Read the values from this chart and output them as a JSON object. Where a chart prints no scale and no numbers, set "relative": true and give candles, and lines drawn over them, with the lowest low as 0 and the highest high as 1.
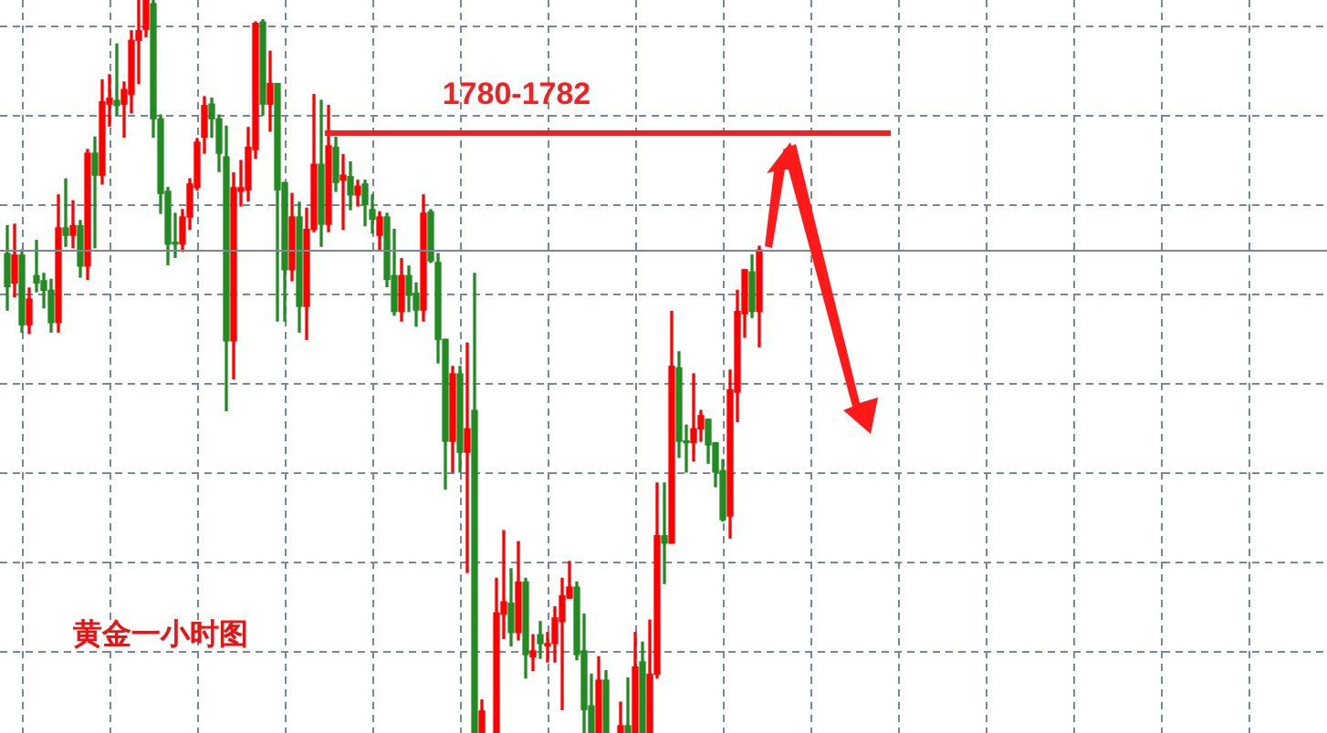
{
  "chart_data": {
    "type": "candlestick",
    "relative": true,
    "grid": true,
    "legend": false,
    "tick_labels": false,
    "categories": [
      null,
      null,
      null,
      null,
      null,
      null,
      null,
      null,
      null,
      null,
      null,
      null,
      null,
      null,
      null,
      null,
      null,
      null,
      null,
      null,
      null,
      null,
      null,
      null,
      null,
      null,
      null,
      null,
      null,
      null,
      null,
      null,
      null,
      null,
      null,
      null,
      null,
      null,
      null,
      null,
      null,
      null,
      null,
      null,
      null,
      null,
      null,
      null,
      null,
      null,
      null,
      null,
      null,
      null,
      null,
      null,
      null,
      null,
      null,
      null,
      null,
      null,
      null,
      null,
      null,
      null,
      null,
      null,
      null,
      null,
      null,
      null,
      null,
      null,
      null,
      null,
      null,
      null,
      null,
      null,
      null,
      null,
      null,
      null,
      null,
      null,
      null,
      null,
      null,
      null,
      null,
      null,
      null,
      null,
      null,
      null,
      null,
      null,
      null,
      null,
      null,
      null,
      null,
      null
    ],
    "ohlc": [
      [
        0.654,
        0.692,
        0.577,
        0.609
      ],
      [
        0.614,
        0.694,
        0.595,
        0.652
      ],
      [
        0.652,
        0.659,
        0.547,
        0.557
      ],
      [
        0.557,
        0.607,
        0.545,
        0.592
      ],
      [
        0.624,
        0.672,
        0.602,
        0.614
      ],
      [
        0.617,
        0.627,
        0.58,
        0.604
      ],
      [
        0.604,
        0.619,
        0.547,
        0.56
      ],
      [
        0.56,
        0.734,
        0.547,
        0.689
      ],
      [
        0.689,
        0.756,
        0.664,
        0.679
      ],
      [
        0.679,
        0.726,
        0.662,
        0.692
      ],
      [
        0.692,
        0.699,
        0.622,
        0.637
      ],
      [
        0.637,
        0.796,
        0.619,
        0.791
      ],
      [
        0.791,
        0.813,
        0.662,
        0.761
      ],
      [
        0.761,
        0.891,
        0.749,
        0.861
      ],
      [
        0.858,
        0.898,
        0.828,
        0.866
      ],
      [
        0.863,
        0.94,
        0.843,
        0.856
      ],
      [
        0.858,
        0.888,
        0.813,
        0.878
      ],
      [
        0.871,
        0.958,
        0.846,
        0.945
      ],
      [
        0.945,
        1,
        0.886,
        0.958
      ],
      [
        0.96,
        1,
        0.95,
        1
      ],
      [
        0.995,
        1,
        0.813,
        0.838
      ],
      [
        0.838,
        0.843,
        0.709,
        0.736
      ],
      [
        0.739,
        0.744,
        0.639,
        0.667
      ],
      [
        0.669,
        0.709,
        0.649,
        0.667
      ],
      [
        0.667,
        0.714,
        0.657,
        0.704
      ],
      [
        0.704,
        0.756,
        0.687,
        0.749
      ],
      [
        0.744,
        0.811,
        0.741,
        0.806
      ],
      [
        0.813,
        0.868,
        0.791,
        0.856
      ],
      [
        0.858,
        0.866,
        0.813,
        0.838
      ],
      [
        0.838,
        0.843,
        0.766,
        0.791
      ],
      [
        0.786,
        0.828,
        0.44,
        0.535
      ],
      [
        0.535,
        0.764,
        0.483,
        0.744
      ],
      [
        0.739,
        0.781,
        0.719,
        0.744
      ],
      [
        0.741,
        0.826,
        0.726,
        0.799
      ],
      [
        0.796,
        0.97,
        0.784,
        0.968
      ],
      [
        0.97,
        0.973,
        0.843,
        0.858
      ],
      [
        0.858,
        0.93,
        0.821,
        0.886
      ],
      [
        0.886,
        0.886,
        0.562,
        0.741
      ],
      [
        0.751,
        0.751,
        0.562,
        0.632
      ],
      [
        0.632,
        0.736,
        0.617,
        0.704
      ],
      [
        0.704,
        0.724,
        0.547,
        0.582
      ],
      [
        0.582,
        0.716,
        0.537,
        0.687
      ],
      [
        0.687,
        0.871,
        0.684,
        0.776
      ],
      [
        0.776,
        0.863,
        0.664,
        0.694
      ],
      [
        0.694,
        0.856,
        0.684,
        0.801
      ],
      [
        0.799,
        0.813,
        0.739,
        0.751
      ],
      [
        0.754,
        0.789,
        0.687,
        0.761
      ],
      [
        0.759,
        0.779,
        0.714,
        0.734
      ],
      [
        0.734,
        0.754,
        0.719,
        0.746
      ],
      [
        0.749,
        0.754,
        0.692,
        0.721
      ],
      [
        0.714,
        0.734,
        0.682,
        0.701
      ],
      [
        0.679,
        0.711,
        0.659,
        0.704
      ],
      [
        0.704,
        0.709,
        0.609,
        0.619
      ],
      [
        0.624,
        0.687,
        0.57,
        0.575
      ],
      [
        0.575,
        0.647,
        0.562,
        0.624
      ],
      [
        0.624,
        0.637,
        0.575,
        0.597
      ],
      [
        0.6,
        0.614,
        0.555,
        0.577
      ],
      [
        0.577,
        0.734,
        0.562,
        0.709
      ],
      [
        0.711,
        0.714,
        0.642,
        0.644
      ],
      [
        0.642,
        0.654,
        0.505,
        0.537
      ],
      [
        0.537,
        0.537,
        0.333,
        0.398
      ],
      [
        0.398,
        0.5,
        0.356,
        0.49
      ],
      [
        0.49,
        0.5,
        0.356,
        0.383
      ],
      [
        0.383,
        0.532,
        0.219,
        0.415
      ],
      [
        0.44,
        0.627,
        0,
        0
      ],
      [
        0,
        0.045,
        0,
        0.03
      ],
      null,
      [
        0,
        0.211,
        0,
        0.164
      ],
      [
        0.162,
        0.276,
        0.129,
        0.179
      ],
      [
        0.177,
        0.224,
        0.119,
        0.137
      ],
      [
        0.137,
        0.261,
        0.127,
        0.206
      ],
      [
        0.206,
        0.211,
        0.075,
        0.107
      ],
      [
        0.104,
        0.134,
        0.085,
        0.112
      ],
      [
        0.134,
        0.152,
        0.102,
        0.122
      ],
      [
        0.119,
        0.137,
        0.097,
        0.122
      ],
      [
        0.122,
        0.172,
        0.097,
        0.157
      ],
      [
        0.152,
        0.211,
        0.032,
        0.187
      ],
      [
        0.184,
        0.234,
        0.184,
        0.199
      ],
      [
        0.199,
        0.206,
        0.1,
        0.107
      ],
      [
        0.112,
        0.162,
        0,
        0.032
      ],
      [
        0.037,
        0.08,
        0,
        0
      ],
      [
        0,
        0.104,
        0,
        0.072
      ],
      [
        0.072,
        0.085,
        0,
        0
      ],
      null,
      [
        0,
        0.042,
        0,
        0.01
      ],
      [
        0.01,
        0.075,
        0,
        0
      ],
      [
        0,
        0.137,
        0,
        0.09
      ],
      [
        0.097,
        0.124,
        0,
        0
      ],
      [
        0,
        0.154,
        0,
        0.08
      ],
      [
        0.08,
        0.341,
        0.075,
        0.269
      ],
      [
        0.269,
        0.341,
        0.204,
        0.259
      ],
      [
        0.259,
        0.575,
        0.259,
        0.5
      ],
      [
        0.498,
        0.52,
        0.376,
        0.398
      ],
      [
        0.398,
        0.42,
        0.356,
        0.396
      ],
      [
        0.396,
        0.49,
        0.371,
        0.415
      ],
      [
        0.415,
        0.44,
        0.398,
        0.433
      ],
      [
        0.428,
        0.428,
        0.368,
        0.393
      ],
      [
        0.396,
        0.396,
        0.336,
        0.356
      ],
      [
        0.358,
        0.373,
        0.289,
        0.291
      ],
      [
        0.296,
        0.495,
        0.266,
        0.468
      ],
      [
        0.465,
        0.604,
        0.425,
        0.575
      ],
      [
        0.572,
        0.632,
        0.54,
        0.632
      ],
      [
        0.629,
        0.652,
        0.567,
        0.575
      ],
      [
        0.575,
        0.664,
        0.527,
        0.659
      ]
    ],
    "colors": [
      "#228b22",
      "#ff0000",
      "#228b22",
      "#ff0000",
      "#228b22",
      "#228b22",
      "#228b22",
      "#ff0000",
      "#228b22",
      "#ff0000",
      "#228b22",
      "#ff0000",
      "#228b22",
      "#ff0000",
      "#ff0000",
      "#228b22",
      "#ff0000",
      "#ff0000",
      "#ff0000",
      "#ff0000",
      "#228b22",
      "#228b22",
      "#228b22",
      "#228b22",
      "#ff0000",
      "#ff0000",
      "#ff0000",
      "#ff0000",
      "#228b22",
      "#228b22",
      "#228b22",
      "#ff0000",
      "#ff0000",
      "#ff0000",
      "#ff0000",
      "#228b22",
      "#ff0000",
      "#228b22",
      "#228b22",
      "#ff0000",
      "#228b22",
      "#ff0000",
      "#ff0000",
      "#228b22",
      "#ff0000",
      "#228b22",
      "#ff0000",
      "#228b22",
      "#ff0000",
      "#228b22",
      "#228b22",
      "#ff0000",
      "#228b22",
      "#228b22",
      "#ff0000",
      "#228b22",
      "#228b22",
      "#ff0000",
      "#228b22",
      "#228b22",
      "#228b22",
      "#ff0000",
      "#228b22",
      "#ff0000",
      "#228b22",
      "#ff0000",
      null,
      "#ff0000",
      "#ff0000",
      "#228b22",
      "#ff0000",
      "#228b22",
      "#ff0000",
      "#228b22",
      "#ff0000",
      "#ff0000",
      "#ff0000",
      "#ff0000",
      "#228b22",
      "#228b22",
      "#228b22",
      "#ff0000",
      "#228b22",
      null,
      "#ff0000",
      "#228b22",
      "#ff0000",
      "#228b22",
      "#ff0000",
      "#ff0000",
      "#228b22",
      "#ff0000",
      "#228b22",
      "#228b22",
      "#ff0000",
      "#ff0000",
      "#228b22",
      "#228b22",
      "#228b22",
      "#ff0000",
      "#ff0000",
      "#ff0000",
      "#228b22",
      "#ff0000"
    ],
    "ref_lines": [
      {
        "axis": "y",
        "value": 0.659,
        "color": "#7a8694"
      },
      {
        "axis": "y",
        "value": 0.818,
        "color": "#ee2222"
      }
    ],
    "annotations": [
      "黄金一小时图",
      "1780-1782"
    ]
  }
}
